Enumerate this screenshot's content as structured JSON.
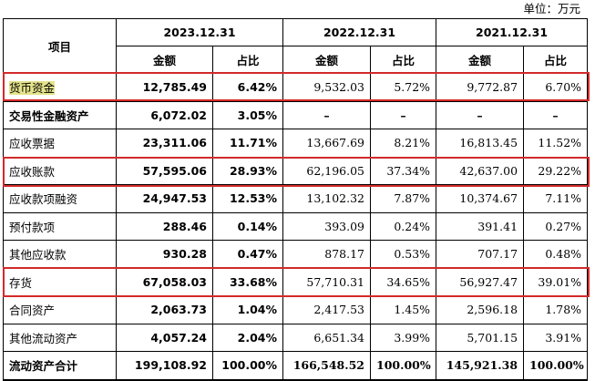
{
  "unit": "单位：万元",
  "header": {
    "item": "项目",
    "years": [
      "2023.12.31",
      "2022.12.31",
      "2021.12.31"
    ],
    "amount": "金额",
    "ratio": "占比"
  },
  "rows": [
    {
      "label": "货币资金",
      "v23": "12,785.49",
      "p23": "6.42%",
      "v22": "9,532.03",
      "p22": "5.72%",
      "v21": "9,772.87",
      "p21": "6.70%"
    },
    {
      "label": "交易性金融资产",
      "v23": "6,072.02",
      "p23": "3.05%",
      "v22": "–",
      "p22": "–",
      "v21": "–",
      "p21": "–"
    },
    {
      "label": "应收票据",
      "v23": "23,311.06",
      "p23": "11.71%",
      "v22": "13,667.69",
      "p22": "8.21%",
      "v21": "16,813.45",
      "p21": "11.52%"
    },
    {
      "label": "应收账款",
      "v23": "57,595.06",
      "p23": "28.93%",
      "v22": "62,196.05",
      "p22": "37.34%",
      "v21": "42,637.00",
      "p21": "29.22%"
    },
    {
      "label": "应收款项融资",
      "v23": "24,947.53",
      "p23": "12.53%",
      "v22": "13,102.32",
      "p22": "7.87%",
      "v21": "10,374.67",
      "p21": "7.11%"
    },
    {
      "label": "预付款项",
      "v23": "288.46",
      "p23": "0.14%",
      "v22": "393.09",
      "p22": "0.24%",
      "v21": "391.41",
      "p21": "0.27%"
    },
    {
      "label": "其他应收款",
      "v23": "930.28",
      "p23": "0.47%",
      "v22": "878.17",
      "p22": "0.53%",
      "v21": "707.17",
      "p21": "0.48%"
    },
    {
      "label": "存货",
      "v23": "67,058.03",
      "p23": "33.68%",
      "v22": "57,710.31",
      "p22": "34.65%",
      "v21": "56,927.47",
      "p21": "39.01%"
    },
    {
      "label": "合同资产",
      "v23": "2,063.73",
      "p23": "1.04%",
      "v22": "2,417.53",
      "p22": "1.45%",
      "v21": "2,596.18",
      "p21": "1.78%"
    },
    {
      "label": "其他流动资产",
      "v23": "4,057.24",
      "p23": "2.04%",
      "v22": "6,651.34",
      "p22": "3.99%",
      "v21": "5,701.15",
      "p21": "3.91%"
    }
  ],
  "total": {
    "label": "流动资产合计",
    "v23": "199,108.92",
    "p23": "100.00%",
    "v22": "166,548.52",
    "p22": "100.00%",
    "v21": "145,921.38",
    "p21": "100.00%"
  }
}
